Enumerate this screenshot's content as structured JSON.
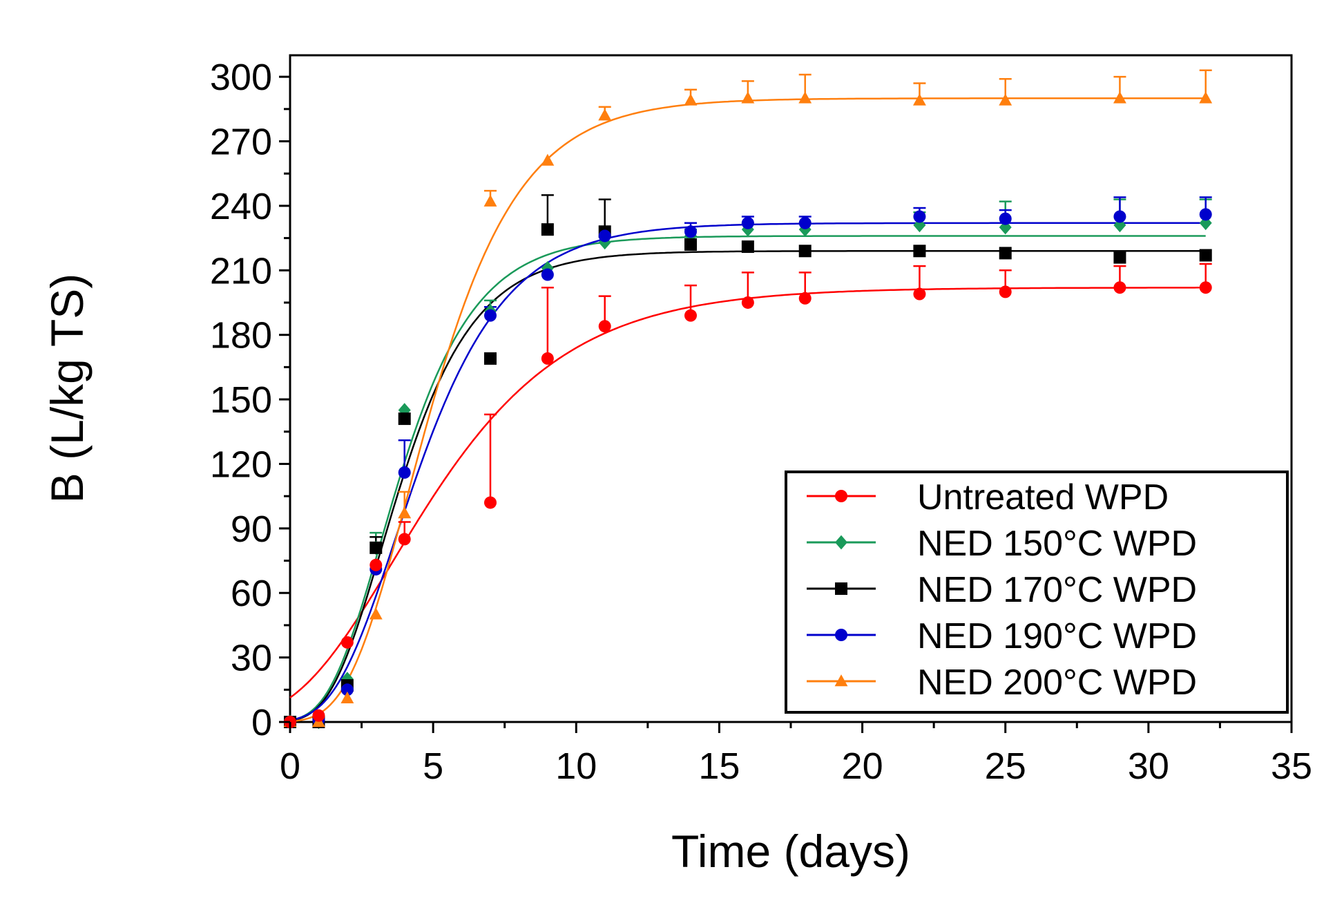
{
  "chart_data": {
    "type": "scatter",
    "title": "",
    "xlabel": "Time (days)",
    "ylabel": "B (L/kg TS)",
    "xlim": [
      0,
      35
    ],
    "ylim": [
      0,
      310
    ],
    "xticks": [
      0,
      5,
      10,
      15,
      20,
      25,
      30,
      35
    ],
    "yticks": [
      0,
      30,
      60,
      90,
      120,
      150,
      180,
      210,
      240,
      270,
      300
    ],
    "xtick_labels": [
      "0",
      "5",
      "10",
      "15",
      "20",
      "25",
      "30",
      "35"
    ],
    "ytick_labels": [
      "0",
      "30",
      "60",
      "90",
      "120",
      "150",
      "180",
      "210",
      "240",
      "270",
      "300"
    ],
    "legend_position": "bottom-right",
    "grid": false,
    "series": [
      {
        "name": "Untreated WPD",
        "color": "#ff0000",
        "marker": "circle",
        "x": [
          0,
          1,
          2,
          3,
          4,
          7,
          9,
          11,
          14,
          16,
          18,
          22,
          25,
          29,
          32
        ],
        "y": [
          0,
          3,
          37,
          73,
          85,
          102,
          169,
          184,
          189,
          195,
          197,
          199,
          200,
          202,
          202
        ],
        "err": [
          0,
          0,
          0,
          0,
          8,
          41,
          33,
          14,
          14,
          14,
          12,
          13,
          10,
          10,
          11
        ],
        "fit": {
          "A": 202,
          "mu": 22,
          "lambda": 0.2
        }
      },
      {
        "name": "NED 150°C WPD",
        "color": "#1a9a5a",
        "marker": "diamond",
        "x": [
          0,
          1,
          2,
          3,
          4,
          7,
          9,
          11,
          14,
          16,
          18,
          22,
          25,
          29,
          32
        ],
        "y": [
          0,
          0,
          20,
          81,
          145,
          191,
          211,
          223,
          226,
          229,
          229,
          231,
          230,
          231,
          232
        ],
        "err": [
          0,
          0,
          0,
          7,
          0,
          5,
          0,
          0,
          3,
          3,
          3,
          6,
          12,
          12,
          11
        ],
        "fit": {
          "A": 226,
          "mu": 46,
          "lambda": 1.35
        }
      },
      {
        "name": "NED 170°C WPD",
        "color": "#000000",
        "marker": "square",
        "x": [
          0,
          1,
          2,
          3,
          4,
          7,
          9,
          11,
          14,
          16,
          18,
          22,
          25,
          29,
          32
        ],
        "y": [
          0,
          0,
          17,
          81,
          141,
          169,
          229,
          228,
          222,
          221,
          219,
          219,
          218,
          216,
          217
        ],
        "err": [
          0,
          0,
          0,
          5,
          0,
          0,
          16,
          15,
          0,
          0,
          0,
          0,
          0,
          0,
          0
        ],
        "fit": {
          "A": 219,
          "mu": 45,
          "lambda": 1.4
        }
      },
      {
        "name": "NED 190°C WPD",
        "color": "#0000cc",
        "marker": "circle",
        "x": [
          0,
          1,
          2,
          3,
          4,
          7,
          9,
          11,
          14,
          16,
          18,
          22,
          25,
          29,
          32
        ],
        "y": [
          0,
          1,
          15,
          71,
          116,
          189,
          208,
          226,
          228,
          232,
          232,
          235,
          234,
          235,
          236
        ],
        "err": [
          0,
          0,
          0,
          0,
          15,
          4,
          0,
          0,
          4,
          3,
          3,
          4,
          4,
          9,
          8
        ],
        "fit": {
          "A": 232,
          "mu": 40,
          "lambda": 1.55
        }
      },
      {
        "name": "NED 200°C WPD",
        "color": "#ff7f0e",
        "marker": "triangle",
        "x": [
          0,
          1,
          2,
          3,
          4,
          7,
          9,
          11,
          14,
          16,
          18,
          22,
          25,
          29,
          32
        ],
        "y": [
          0,
          0,
          11,
          50,
          97,
          242,
          261,
          282,
          289,
          290,
          290,
          289,
          289,
          290,
          290
        ],
        "err": [
          0,
          0,
          0,
          0,
          10,
          5,
          0,
          4,
          5,
          8,
          11,
          8,
          10,
          10,
          13
        ],
        "fit": {
          "A": 290,
          "mu": 50,
          "lambda": 2.0
        }
      }
    ]
  }
}
